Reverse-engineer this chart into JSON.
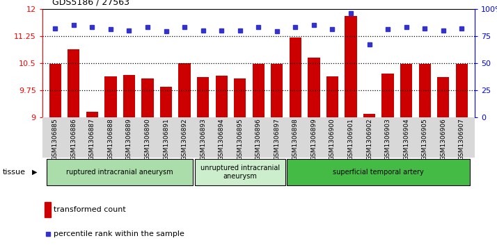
{
  "title": "GDS5186 / 27563",
  "samples": [
    "GSM1306885",
    "GSM1306886",
    "GSM1306887",
    "GSM1306888",
    "GSM1306889",
    "GSM1306890",
    "GSM1306891",
    "GSM1306892",
    "GSM1306893",
    "GSM1306894",
    "GSM1306895",
    "GSM1306896",
    "GSM1306897",
    "GSM1306898",
    "GSM1306899",
    "GSM1306900",
    "GSM1306901",
    "GSM1306902",
    "GSM1306903",
    "GSM1306904",
    "GSM1306905",
    "GSM1306906",
    "GSM1306907"
  ],
  "transformed_count": [
    10.47,
    10.87,
    9.15,
    10.13,
    10.17,
    10.08,
    9.85,
    10.5,
    10.12,
    10.14,
    10.07,
    10.47,
    10.48,
    11.2,
    10.65,
    10.13,
    11.8,
    9.1,
    10.2,
    10.47,
    10.47,
    10.12,
    10.48
  ],
  "percentile_rank": [
    82,
    85,
    83,
    81,
    80,
    83,
    79,
    83,
    80,
    80,
    80,
    83,
    79,
    83,
    85,
    81,
    96,
    67,
    81,
    83,
    82,
    80,
    82
  ],
  "ylim_left": [
    9,
    12
  ],
  "ylim_right": [
    0,
    100
  ],
  "yticks_left": [
    9,
    9.75,
    10.5,
    11.25,
    12
  ],
  "yticks_right": [
    0,
    25,
    50,
    75,
    100
  ],
  "ytick_labels_right": [
    "0",
    "25",
    "50",
    "75",
    "100%"
  ],
  "hlines": [
    9.75,
    10.5,
    11.25
  ],
  "bar_color": "#cc0000",
  "dot_color": "#3333cc",
  "groups": [
    {
      "label": "ruptured intracranial aneurysm",
      "start": 0,
      "end": 7,
      "color": "#aaddaa"
    },
    {
      "label": "unruptured intracranial\naneurysm",
      "start": 8,
      "end": 12,
      "color": "#cceecc"
    },
    {
      "label": "superficial temporal artery",
      "start": 13,
      "end": 22,
      "color": "#44bb44"
    }
  ],
  "tissue_label": "tissue",
  "legend_bar_label": "transformed count",
  "legend_dot_label": "percentile rank within the sample",
  "plot_bg_color": "#ffffff",
  "xtick_bg_color": "#d8d8d8"
}
